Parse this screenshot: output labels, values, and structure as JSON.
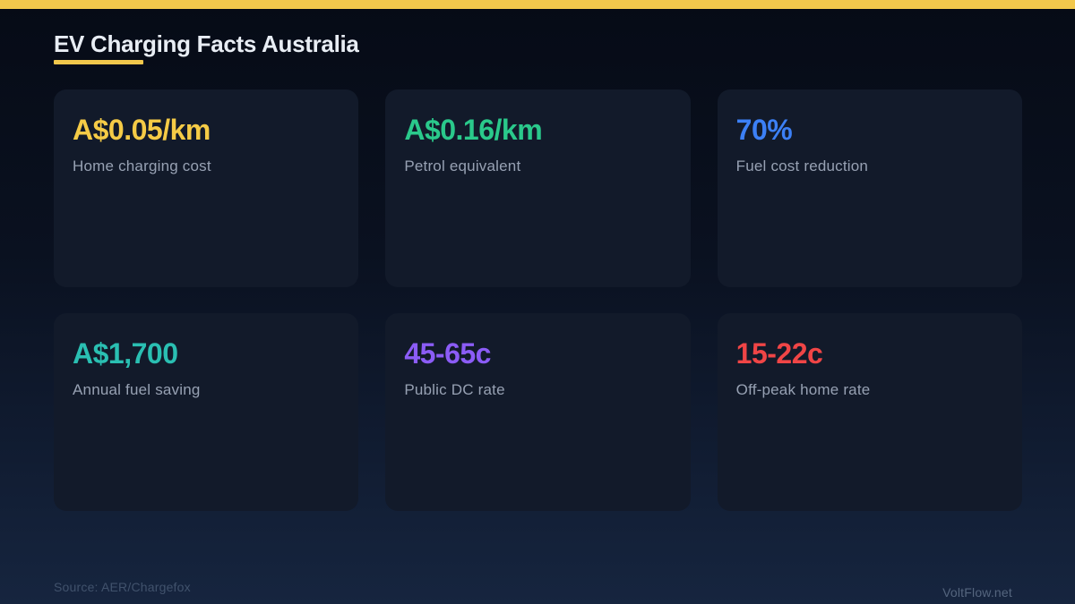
{
  "accent_yellow": "#F2C84C",
  "header": {
    "title": "EV Charging Facts Australia"
  },
  "cards": [
    {
      "value": "A$0.05/km",
      "label": "Home charging cost",
      "color": "#F5CB46"
    },
    {
      "value": "A$0.16/km",
      "label": "Petrol equivalent",
      "color": "#2AC98B"
    },
    {
      "value": "70%",
      "label": "Fuel cost reduction",
      "color": "#3C80F6"
    },
    {
      "value": "A$1,700",
      "label": "Annual fuel saving",
      "color": "#2ABFB2"
    },
    {
      "value": "45-65c",
      "label": "Public DC rate",
      "color": "#8B5CF6"
    },
    {
      "value": "15-22c",
      "label": "Off-peak home rate",
      "color": "#F04546"
    }
  ],
  "footer": {
    "source": "Source: AER/Chargefox",
    "brand": "VoltFlow.net"
  },
  "chart_data": {
    "type": "table",
    "title": "EV Charging Facts Australia",
    "columns": [
      "value",
      "label"
    ],
    "rows": [
      [
        "A$0.05/km",
        "Home charging cost"
      ],
      [
        "A$0.16/km",
        "Petrol equivalent"
      ],
      [
        "70%",
        "Fuel cost reduction"
      ],
      [
        "A$1,700",
        "Annual fuel saving"
      ],
      [
        "45-65c",
        "Public DC rate"
      ],
      [
        "15-22c",
        "Off-peak home rate"
      ]
    ],
    "source": "Source: AER/Chargefox",
    "layout": "3x2 stat cards, dark navy theme, yellow accent bar"
  }
}
